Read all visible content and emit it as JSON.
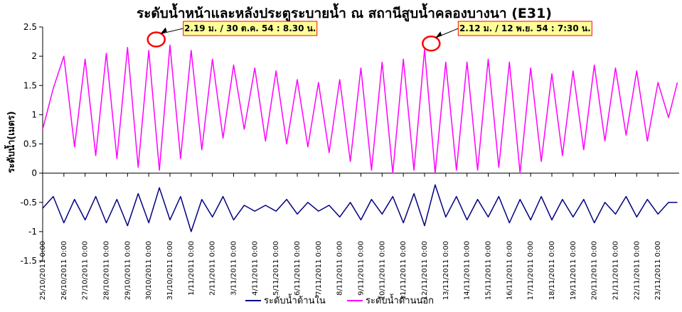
{
  "chart_data": {
    "type": "line",
    "title": "ระดับน้ำหน้าและหลังประตูระบายน้ำ ณ สถานีสูบน้ำคลองบางนา (E31)",
    "ylabel": "ระดับน้ำ(เมตร)",
    "xlabel": "",
    "ylim": [
      -1.5,
      2.5
    ],
    "yticks": [
      "2.5",
      "2",
      "1.5",
      "1",
      "0.5",
      "0",
      "-0.5",
      "-1",
      "-1.5"
    ],
    "x_start": "25/10/2011 0:00",
    "x_end": "24/11/2011 0:00",
    "x_tick_labels": [
      "25/10/2011 0:00",
      "26/10/2011 0:00",
      "27/10/2011 0:00",
      "28/10/2011 0:00",
      "29/10/2011 0:00",
      "30/10/2011 0:00",
      "31/10/2011 0:00",
      "1/11/2011 0:00",
      "2/11/2011 0:00",
      "3/11/2011 0:00",
      "4/11/2011 0:00",
      "5/11/2011 0:00",
      "6/11/2011 0:00",
      "7/11/2011 0:00",
      "8/11/2011 0:00",
      "9/11/2011 0:00",
      "10/11/2011 0:00",
      "11/11/2011 0:00",
      "12/11/2011 0:00",
      "13/11/2011 0:00",
      "14/11/2011 0:00",
      "15/11/2011 0:00",
      "16/11/2011 0:00",
      "17/11/2011 0:00",
      "18/11/2011 0:00",
      "19/11/2011 0:00",
      "20/11/2011 0:00",
      "21/11/2011 0:00",
      "22/11/2011 0:00",
      "23/11/2011 0:00"
    ],
    "gridlines": false,
    "legend_position": "bottom-center",
    "series": [
      {
        "name": "ระดับน้ำด้านใน",
        "color": "#000080",
        "x": [
          "25/10/2011 0:00",
          "25/10/2011 12:00",
          "26/10/2011 0:00",
          "26/10/2011 12:00",
          "27/10/2011 0:00",
          "27/10/2011 12:00",
          "28/10/2011 0:00",
          "28/10/2011 12:00",
          "29/10/2011 0:00",
          "29/10/2011 12:00",
          "30/10/2011 0:00",
          "30/10/2011 12:00",
          "31/10/2011 0:00",
          "31/10/2011 12:00",
          "1/11/2011 0:00",
          "1/11/2011 12:00",
          "2/11/2011 0:00",
          "2/11/2011 12:00",
          "3/11/2011 0:00",
          "3/11/2011 12:00",
          "4/11/2011 0:00",
          "4/11/2011 12:00",
          "5/11/2011 0:00",
          "5/11/2011 12:00",
          "6/11/2011 0:00",
          "6/11/2011 12:00",
          "7/11/2011 0:00",
          "7/11/2011 12:00",
          "8/11/2011 0:00",
          "8/11/2011 12:00",
          "9/11/2011 0:00",
          "9/11/2011 12:00",
          "10/11/2011 0:00",
          "10/11/2011 12:00",
          "11/11/2011 0:00",
          "11/11/2011 12:00",
          "12/11/2011 0:00",
          "12/11/2011 12:00",
          "13/11/2011 0:00",
          "13/11/2011 12:00",
          "14/11/2011 0:00",
          "14/11/2011 12:00",
          "15/11/2011 0:00",
          "15/11/2011 12:00",
          "16/11/2011 0:00",
          "16/11/2011 12:00",
          "17/11/2011 0:00",
          "17/11/2011 12:00",
          "18/11/2011 0:00",
          "18/11/2011 12:00",
          "19/11/2011 0:00",
          "19/11/2011 12:00",
          "20/11/2011 0:00",
          "20/11/2011 12:00",
          "21/11/2011 0:00",
          "21/11/2011 12:00",
          "22/11/2011 0:00",
          "22/11/2011 12:00",
          "23/11/2011 0:00",
          "23/11/2011 12:00",
          "23/11/2011 22:00"
        ],
        "values": [
          -0.6,
          -0.4,
          -0.85,
          -0.45,
          -0.8,
          -0.4,
          -0.85,
          -0.45,
          -0.9,
          -0.35,
          -0.85,
          -0.25,
          -0.8,
          -0.4,
          -1.0,
          -0.45,
          -0.75,
          -0.4,
          -0.8,
          -0.55,
          -0.65,
          -0.55,
          -0.65,
          -0.45,
          -0.7,
          -0.5,
          -0.65,
          -0.55,
          -0.75,
          -0.5,
          -0.8,
          -0.45,
          -0.7,
          -0.4,
          -0.85,
          -0.35,
          -0.9,
          -0.2,
          -0.75,
          -0.4,
          -0.8,
          -0.45,
          -0.75,
          -0.4,
          -0.85,
          -0.45,
          -0.8,
          -0.4,
          -0.8,
          -0.45,
          -0.75,
          -0.45,
          -0.85,
          -0.5,
          -0.7,
          -0.4,
          -0.75,
          -0.45,
          -0.7,
          -0.5,
          -0.5
        ]
      },
      {
        "name": "ระดับน้ำด้านนอก",
        "color": "#ff00ff",
        "x": [
          "25/10/2011 0:00",
          "25/10/2011 12:00",
          "26/10/2011 0:00",
          "26/10/2011 12:00",
          "27/10/2011 0:00",
          "27/10/2011 12:00",
          "28/10/2011 0:00",
          "28/10/2011 12:00",
          "29/10/2011 0:00",
          "29/10/2011 12:00",
          "30/10/2011 0:00",
          "30/10/2011 12:00",
          "31/10/2011 0:00",
          "31/10/2011 12:00",
          "1/11/2011 0:00",
          "1/11/2011 12:00",
          "2/11/2011 0:00",
          "2/11/2011 12:00",
          "3/11/2011 0:00",
          "3/11/2011 12:00",
          "4/11/2011 0:00",
          "4/11/2011 12:00",
          "5/11/2011 0:00",
          "5/11/2011 12:00",
          "6/11/2011 0:00",
          "6/11/2011 12:00",
          "7/11/2011 0:00",
          "7/11/2011 12:00",
          "8/11/2011 0:00",
          "8/11/2011 12:00",
          "9/11/2011 0:00",
          "9/11/2011 12:00",
          "10/11/2011 0:00",
          "10/11/2011 12:00",
          "11/11/2011 0:00",
          "11/11/2011 12:00",
          "12/11/2011 0:00",
          "12/11/2011 12:00",
          "13/11/2011 0:00",
          "13/11/2011 12:00",
          "14/11/2011 0:00",
          "14/11/2011 12:00",
          "15/11/2011 0:00",
          "15/11/2011 12:00",
          "16/11/2011 0:00",
          "16/11/2011 12:00",
          "17/11/2011 0:00",
          "17/11/2011 12:00",
          "18/11/2011 0:00",
          "18/11/2011 12:00",
          "19/11/2011 0:00",
          "19/11/2011 12:00",
          "20/11/2011 0:00",
          "20/11/2011 12:00",
          "21/11/2011 0:00",
          "21/11/2011 12:00",
          "22/11/2011 0:00",
          "22/11/2011 12:00",
          "23/11/2011 0:00",
          "23/11/2011 12:00",
          "23/11/2011 22:00"
        ],
        "values": [
          0.75,
          1.45,
          2.0,
          0.45,
          1.95,
          0.3,
          2.05,
          0.25,
          2.15,
          0.1,
          2.1,
          0.05,
          2.19,
          0.25,
          2.1,
          0.4,
          1.95,
          0.6,
          1.85,
          0.75,
          1.8,
          0.55,
          1.75,
          0.5,
          1.6,
          0.45,
          1.55,
          0.35,
          1.6,
          0.2,
          1.8,
          0.05,
          1.9,
          0.0,
          1.95,
          0.05,
          2.12,
          0.0,
          1.9,
          0.05,
          1.9,
          0.05,
          1.95,
          0.1,
          1.9,
          0.0,
          1.8,
          0.2,
          1.7,
          0.3,
          1.75,
          0.4,
          1.85,
          0.55,
          1.8,
          0.65,
          1.75,
          0.55,
          1.55,
          0.95,
          1.55
        ]
      }
    ],
    "annotations": [
      {
        "text": "2.19 ม. / 30 ต.ค. 54 : 8.30 น.",
        "x": "30/10/2011 8:30",
        "y": 2.19
      },
      {
        "text": "2.12 ม. / 12 พ.ย. 54 : 7:30 น.",
        "x": "12/11/2011 7:30",
        "y": 2.12
      }
    ]
  }
}
